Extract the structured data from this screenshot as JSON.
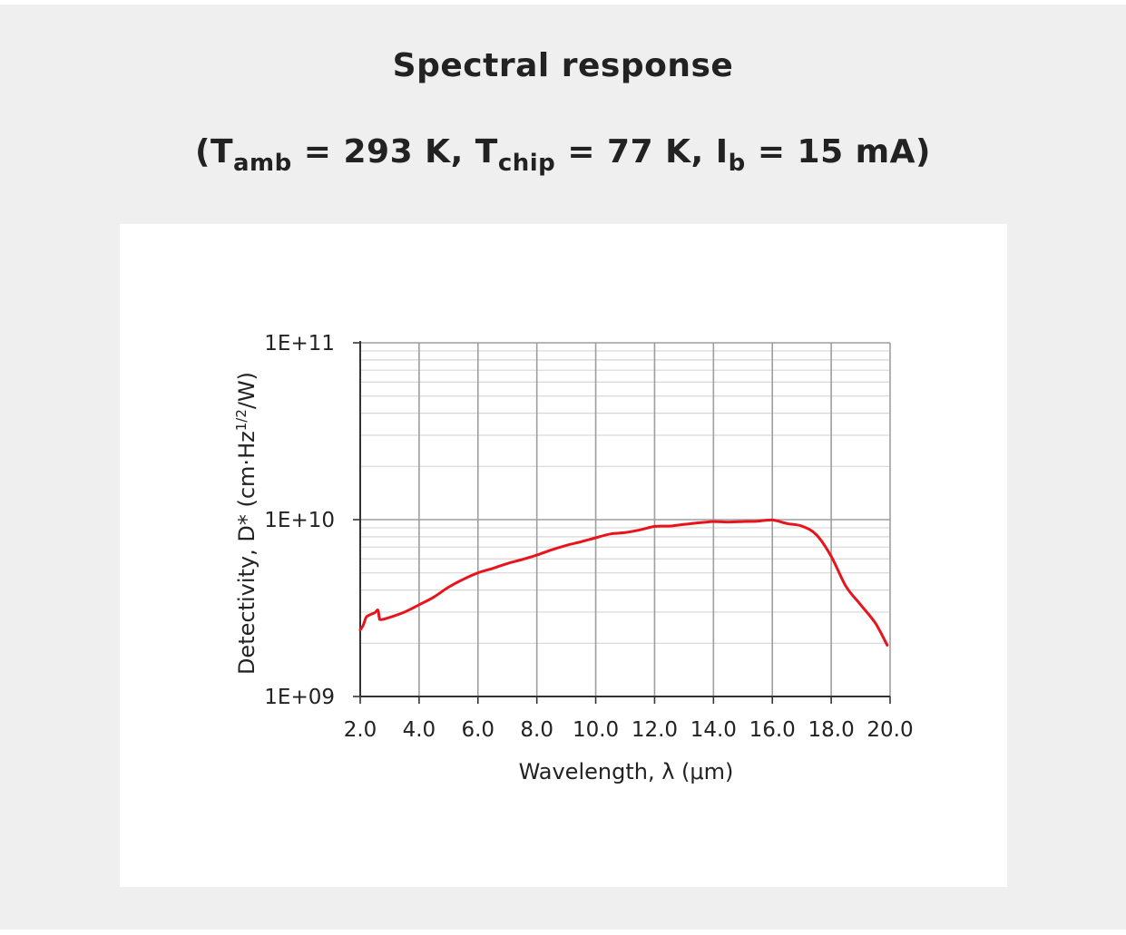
{
  "title": "Spectral response",
  "subtitle": {
    "open_paren": "(",
    "t1_symbol": "T",
    "t1_sub": "amb",
    "t1_value": " = 293 K, ",
    "t2_symbol": "T",
    "t2_sub": "chip",
    "t2_value": " = 77 K, ",
    "i_symbol": "I",
    "i_sub": "b",
    "i_value": " = 15 mA",
    "close_paren": ")"
  },
  "chart_data": {
    "type": "line",
    "xlabel": "Wavelength, λ (μm)",
    "ylabel": "Detectivity, D* (cm·Hz",
    "ylabel_superscript": "1/2",
    "ylabel_tail": "/W)",
    "xlim": [
      2.0,
      20.0
    ],
    "ylim": [
      1000000000,
      100000000000
    ],
    "y_scale": "log",
    "grid": true,
    "x_ticks": [
      2.0,
      4.0,
      6.0,
      8.0,
      10.0,
      12.0,
      14.0,
      16.0,
      18.0,
      20.0
    ],
    "x_tick_labels": [
      "2.0",
      "4.0",
      "6.0",
      "8.0",
      "10.0",
      "12.0",
      "14.0",
      "16.0",
      "18.0",
      "20.0"
    ],
    "y_ticks": [
      1000000000,
      10000000000,
      100000000000
    ],
    "y_tick_labels": [
      "1E+09",
      "1E+10",
      "1E+11"
    ],
    "line_color": "#e8141c",
    "series": [
      {
        "x": [
          2.0,
          2.1,
          2.2,
          2.3,
          2.5,
          2.6,
          2.65,
          2.7,
          3.0,
          3.5,
          4.0,
          4.5,
          5.0,
          5.5,
          6.0,
          6.5,
          7.0,
          7.5,
          8.0,
          8.5,
          9.0,
          9.5,
          10.0,
          10.5,
          11.0,
          11.5,
          12.0,
          12.5,
          13.0,
          13.5,
          14.0,
          14.5,
          15.0,
          15.5,
          16.0,
          16.5,
          17.0,
          17.5,
          18.0,
          18.5,
          19.0,
          19.5,
          19.9
        ],
        "y": [
          2380000000,
          2520000000,
          2800000000,
          2880000000,
          2980000000,
          3080000000,
          2780000000,
          2720000000,
          2800000000,
          3000000000,
          3300000000,
          3650000000,
          4150000000,
          4600000000,
          5000000000,
          5300000000,
          5650000000,
          5950000000,
          6300000000,
          6750000000,
          7150000000,
          7500000000,
          7900000000,
          8300000000,
          8450000000,
          8750000000,
          9150000000,
          9200000000,
          9400000000,
          9600000000,
          9750000000,
          9700000000,
          9750000000,
          9800000000,
          9950000000,
          9500000000,
          9200000000,
          8200000000,
          6200000000,
          4200000000,
          3300000000,
          2600000000,
          1950000000
        ]
      }
    ]
  }
}
